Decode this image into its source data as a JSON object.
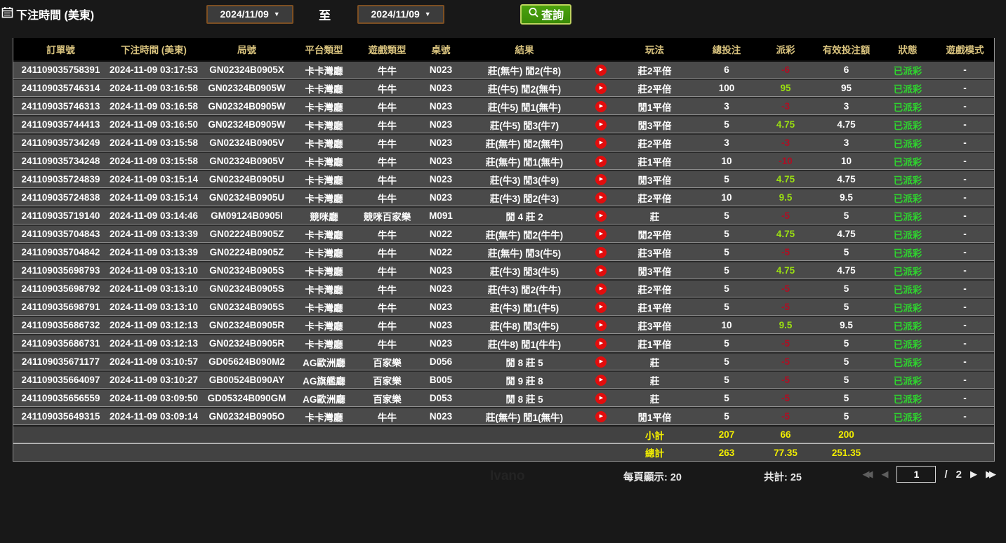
{
  "filters": {
    "label": "下注時間 (美東)",
    "date_from": "2024/11/09",
    "date_to": "2024/11/09",
    "to_label": "至",
    "search_label": "查詢"
  },
  "table": {
    "headers": [
      "訂單號",
      "下注時間 (美東)",
      "局號",
      "平台類型",
      "遊戲類型",
      "桌號",
      "結果",
      "",
      "玩法",
      "總投注",
      "派彩",
      "有效投注額",
      "狀態",
      "遊戲模式"
    ],
    "rows": [
      {
        "order": "241109035758391",
        "time": "2024-11-09 03:17:53",
        "round": "GN02324B0905X",
        "platform": "卡卡灣廳",
        "game": "牛牛",
        "table_no": "N023",
        "result": "莊(無牛) 閒2(牛8)",
        "play": "莊2平倍",
        "bet": "6",
        "payout": "-6",
        "valid": "6",
        "status": "已派彩",
        "mode": "-"
      },
      {
        "order": "241109035746314",
        "time": "2024-11-09 03:16:58",
        "round": "GN02324B0905W",
        "platform": "卡卡灣廳",
        "game": "牛牛",
        "table_no": "N023",
        "result": "莊(牛5) 閒2(無牛)",
        "play": "莊2平倍",
        "bet": "100",
        "payout": "95",
        "valid": "95",
        "status": "已派彩",
        "mode": "-"
      },
      {
        "order": "241109035746313",
        "time": "2024-11-09 03:16:58",
        "round": "GN02324B0905W",
        "platform": "卡卡灣廳",
        "game": "牛牛",
        "table_no": "N023",
        "result": "莊(牛5) 閒1(無牛)",
        "play": "閒1平倍",
        "bet": "3",
        "payout": "-3",
        "valid": "3",
        "status": "已派彩",
        "mode": "-"
      },
      {
        "order": "241109035744413",
        "time": "2024-11-09 03:16:50",
        "round": "GN02324B0905W",
        "platform": "卡卡灣廳",
        "game": "牛牛",
        "table_no": "N023",
        "result": "莊(牛5) 閒3(牛7)",
        "play": "閒3平倍",
        "bet": "5",
        "payout": "4.75",
        "valid": "4.75",
        "status": "已派彩",
        "mode": "-"
      },
      {
        "order": "241109035734249",
        "time": "2024-11-09 03:15:58",
        "round": "GN02324B0905V",
        "platform": "卡卡灣廳",
        "game": "牛牛",
        "table_no": "N023",
        "result": "莊(無牛) 閒2(無牛)",
        "play": "莊2平倍",
        "bet": "3",
        "payout": "-3",
        "valid": "3",
        "status": "已派彩",
        "mode": "-"
      },
      {
        "order": "241109035734248",
        "time": "2024-11-09 03:15:58",
        "round": "GN02324B0905V",
        "platform": "卡卡灣廳",
        "game": "牛牛",
        "table_no": "N023",
        "result": "莊(無牛) 閒1(無牛)",
        "play": "莊1平倍",
        "bet": "10",
        "payout": "-10",
        "valid": "10",
        "status": "已派彩",
        "mode": "-"
      },
      {
        "order": "241109035724839",
        "time": "2024-11-09 03:15:14",
        "round": "GN02324B0905U",
        "platform": "卡卡灣廳",
        "game": "牛牛",
        "table_no": "N023",
        "result": "莊(牛3) 閒3(牛9)",
        "play": "閒3平倍",
        "bet": "5",
        "payout": "4.75",
        "valid": "4.75",
        "status": "已派彩",
        "mode": "-"
      },
      {
        "order": "241109035724838",
        "time": "2024-11-09 03:15:14",
        "round": "GN02324B0905U",
        "platform": "卡卡灣廳",
        "game": "牛牛",
        "table_no": "N023",
        "result": "莊(牛3) 閒2(牛3)",
        "play": "莊2平倍",
        "bet": "10",
        "payout": "9.5",
        "valid": "9.5",
        "status": "已派彩",
        "mode": "-"
      },
      {
        "order": "241109035719140",
        "time": "2024-11-09 03:14:46",
        "round": "GM09124B0905I",
        "platform": "競咪廳",
        "game": "競咪百家樂",
        "table_no": "M091",
        "result": "閒 4 莊 2",
        "play": "莊",
        "bet": "5",
        "payout": "-5",
        "valid": "5",
        "status": "已派彩",
        "mode": "-"
      },
      {
        "order": "241109035704843",
        "time": "2024-11-09 03:13:39",
        "round": "GN02224B0905Z",
        "platform": "卡卡灣廳",
        "game": "牛牛",
        "table_no": "N022",
        "result": "莊(無牛) 閒2(牛牛)",
        "play": "閒2平倍",
        "bet": "5",
        "payout": "4.75",
        "valid": "4.75",
        "status": "已派彩",
        "mode": "-"
      },
      {
        "order": "241109035704842",
        "time": "2024-11-09 03:13:39",
        "round": "GN02224B0905Z",
        "platform": "卡卡灣廳",
        "game": "牛牛",
        "table_no": "N022",
        "result": "莊(無牛) 閒3(牛5)",
        "play": "莊3平倍",
        "bet": "5",
        "payout": "-5",
        "valid": "5",
        "status": "已派彩",
        "mode": "-"
      },
      {
        "order": "241109035698793",
        "time": "2024-11-09 03:13:10",
        "round": "GN02324B0905S",
        "platform": "卡卡灣廳",
        "game": "牛牛",
        "table_no": "N023",
        "result": "莊(牛3) 閒3(牛5)",
        "play": "閒3平倍",
        "bet": "5",
        "payout": "4.75",
        "valid": "4.75",
        "status": "已派彩",
        "mode": "-"
      },
      {
        "order": "241109035698792",
        "time": "2024-11-09 03:13:10",
        "round": "GN02324B0905S",
        "platform": "卡卡灣廳",
        "game": "牛牛",
        "table_no": "N023",
        "result": "莊(牛3) 閒2(牛牛)",
        "play": "莊2平倍",
        "bet": "5",
        "payout": "-5",
        "valid": "5",
        "status": "已派彩",
        "mode": "-"
      },
      {
        "order": "241109035698791",
        "time": "2024-11-09 03:13:10",
        "round": "GN02324B0905S",
        "platform": "卡卡灣廳",
        "game": "牛牛",
        "table_no": "N023",
        "result": "莊(牛3) 閒1(牛5)",
        "play": "莊1平倍",
        "bet": "5",
        "payout": "-5",
        "valid": "5",
        "status": "已派彩",
        "mode": "-"
      },
      {
        "order": "241109035686732",
        "time": "2024-11-09 03:12:13",
        "round": "GN02324B0905R",
        "platform": "卡卡灣廳",
        "game": "牛牛",
        "table_no": "N023",
        "result": "莊(牛8) 閒3(牛5)",
        "play": "莊3平倍",
        "bet": "10",
        "payout": "9.5",
        "valid": "9.5",
        "status": "已派彩",
        "mode": "-"
      },
      {
        "order": "241109035686731",
        "time": "2024-11-09 03:12:13",
        "round": "GN02324B0905R",
        "platform": "卡卡灣廳",
        "game": "牛牛",
        "table_no": "N023",
        "result": "莊(牛8) 閒1(牛牛)",
        "play": "莊1平倍",
        "bet": "5",
        "payout": "-5",
        "valid": "5",
        "status": "已派彩",
        "mode": "-"
      },
      {
        "order": "241109035671177",
        "time": "2024-11-09 03:10:57",
        "round": "GD05624B090M2",
        "platform": "AG歐洲廳",
        "game": "百家樂",
        "table_no": "D056",
        "result": "閒 8 莊 5",
        "play": "莊",
        "bet": "5",
        "payout": "-5",
        "valid": "5",
        "status": "已派彩",
        "mode": "-"
      },
      {
        "order": "241109035664097",
        "time": "2024-11-09 03:10:27",
        "round": "GB00524B090AY",
        "platform": "AG旗艦廳",
        "game": "百家樂",
        "table_no": "B005",
        "result": "閒 9 莊 8",
        "play": "莊",
        "bet": "5",
        "payout": "-5",
        "valid": "5",
        "status": "已派彩",
        "mode": "-"
      },
      {
        "order": "241109035656559",
        "time": "2024-11-09 03:09:50",
        "round": "GD05324B090GM",
        "platform": "AG歐洲廳",
        "game": "百家樂",
        "table_no": "D053",
        "result": "閒 8 莊 5",
        "play": "莊",
        "bet": "5",
        "payout": "-5",
        "valid": "5",
        "status": "已派彩",
        "mode": "-"
      },
      {
        "order": "241109035649315",
        "time": "2024-11-09 03:09:14",
        "round": "GN02324B0905O",
        "platform": "卡卡灣廳",
        "game": "牛牛",
        "table_no": "N023",
        "result": "莊(無牛) 閒1(無牛)",
        "play": "閒1平倍",
        "bet": "5",
        "payout": "-5",
        "valid": "5",
        "status": "已派彩",
        "mode": "-"
      }
    ],
    "subtotal": {
      "label": "小計",
      "bet": "207",
      "payout": "66",
      "valid": "200"
    },
    "total": {
      "label": "總計",
      "bet": "263",
      "payout": "77.35",
      "valid": "251.35"
    }
  },
  "footer": {
    "page_size_label": "每頁顯示: 20",
    "total_label": "共計: 25",
    "current_page": "1",
    "page_separator": "/",
    "total_pages": "2",
    "watermark": "Ivano"
  },
  "colors": {
    "header_text": "#d9c37e",
    "row_bg": "#4a4a4a",
    "negative_payout": "#b00e23",
    "positive_payout": "#9ade12",
    "status_paid": "#2fd32f",
    "summary_text": "#f3ef00",
    "search_button_bg": "#43980a",
    "search_button_border": "#bdd45e",
    "datebox_border": "#7d4f22",
    "play_icon": "#e20d0d"
  }
}
